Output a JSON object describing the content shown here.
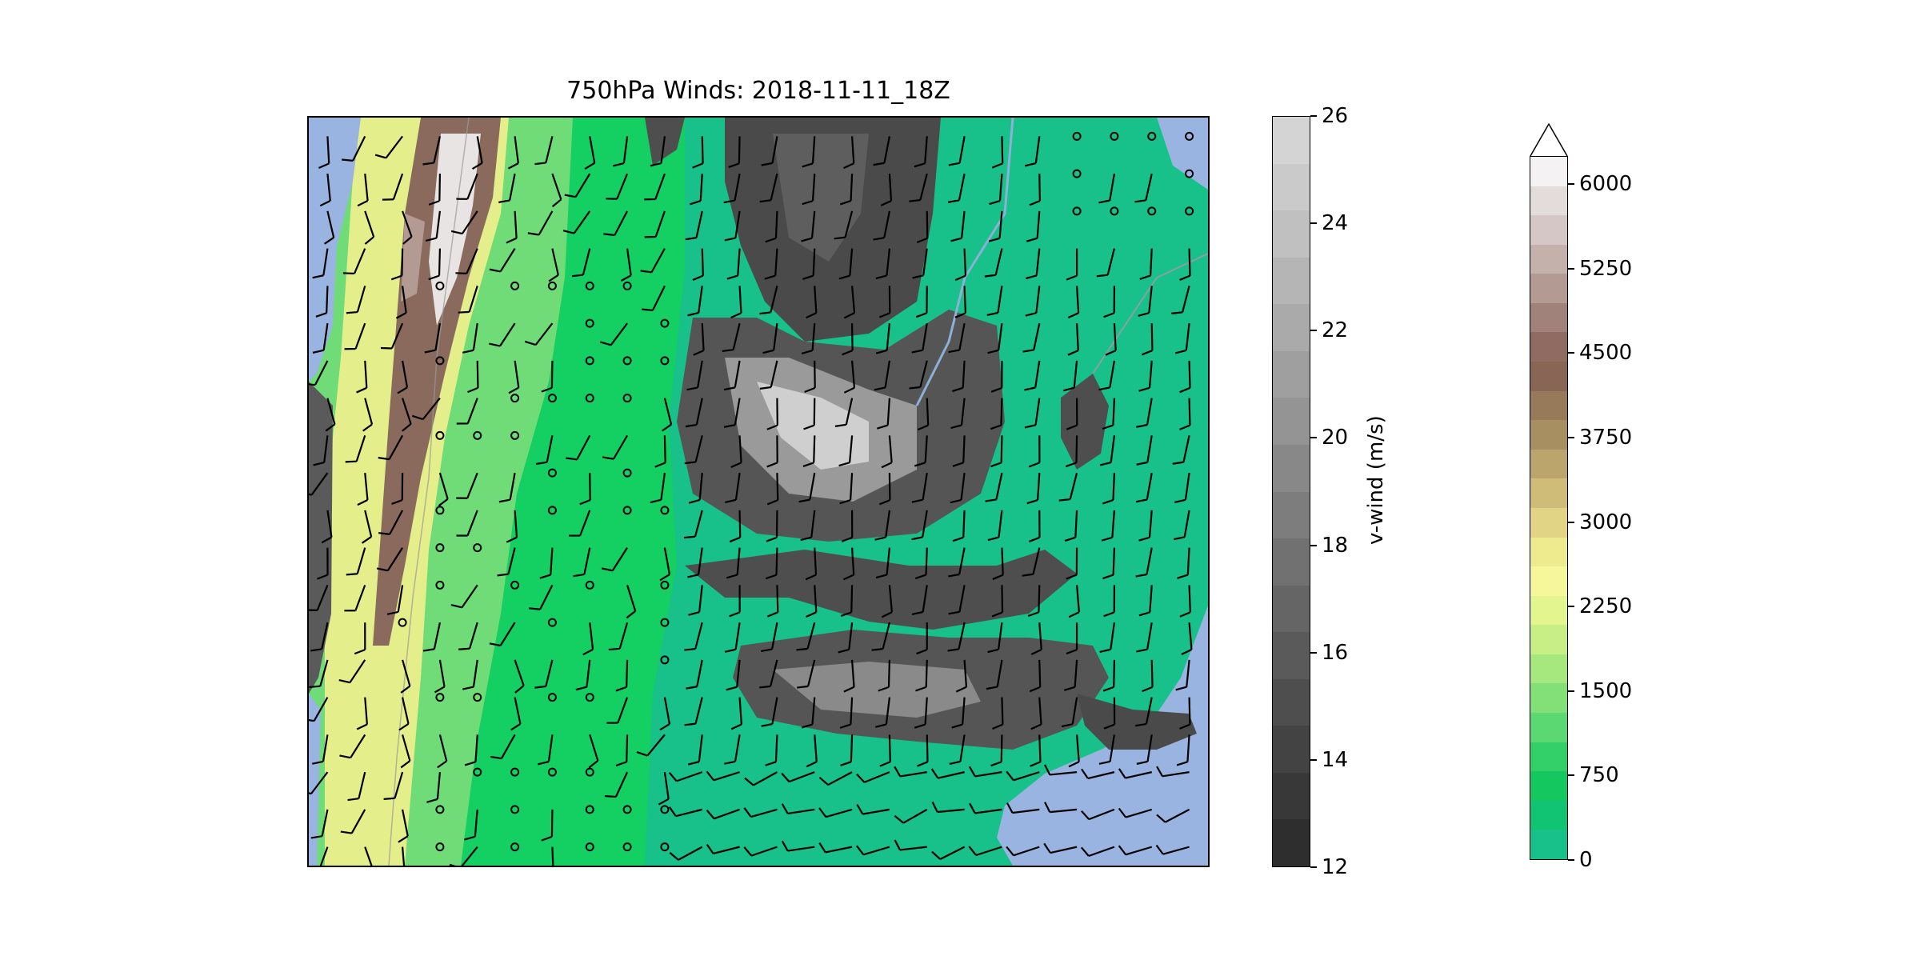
{
  "title": "750hPa Winds: 2018-11-11_18Z",
  "colors": {
    "ocean": "#99b4e0",
    "lowland": "#18c08a",
    "plain": "#14cf62",
    "foothill": "#6fdc77",
    "high": "#f2f296",
    "alpine": "#8a6a5c",
    "snow": "#eeeeee",
    "barb": "#000000"
  },
  "vwind_colorbar": {
    "label": "v-wind (m/s)",
    "ticks": [
      "26",
      "24",
      "22",
      "20",
      "18",
      "16",
      "14",
      "12"
    ],
    "range": [
      12,
      26
    ],
    "colors": [
      "#d4d4d4",
      "#cacaca",
      "#c0c0c0",
      "#b5b5b5",
      "#aaaaaa",
      "#9f9f9f",
      "#949494",
      "#888888",
      "#7d7d7d",
      "#717171",
      "#656565",
      "#5a5a5a",
      "#4e4e4e",
      "#434343",
      "#383838",
      "#2e2e2e"
    ]
  },
  "terrain_colorbar": {
    "ticks": [
      "6000",
      "5250",
      "4500",
      "3750",
      "3000",
      "2250",
      "1500",
      "750",
      "0"
    ],
    "range": [
      0,
      6000
    ],
    "extend": "max",
    "colors": [
      "#f4f2f2",
      "#e4dbdb",
      "#d5c7c5",
      "#c4b1ac",
      "#b39a92",
      "#a1827a",
      "#8f6b62",
      "#896555",
      "#967a5a",
      "#a88f62",
      "#bba56c",
      "#cfbc78",
      "#e1d585",
      "#eeea8e",
      "#f6f79a",
      "#e3f58e",
      "#c8ef85",
      "#a6e77e",
      "#83e078",
      "#5cd872",
      "#33cf69",
      "#14c85f",
      "#10c473",
      "#18c08a"
    ]
  }
}
